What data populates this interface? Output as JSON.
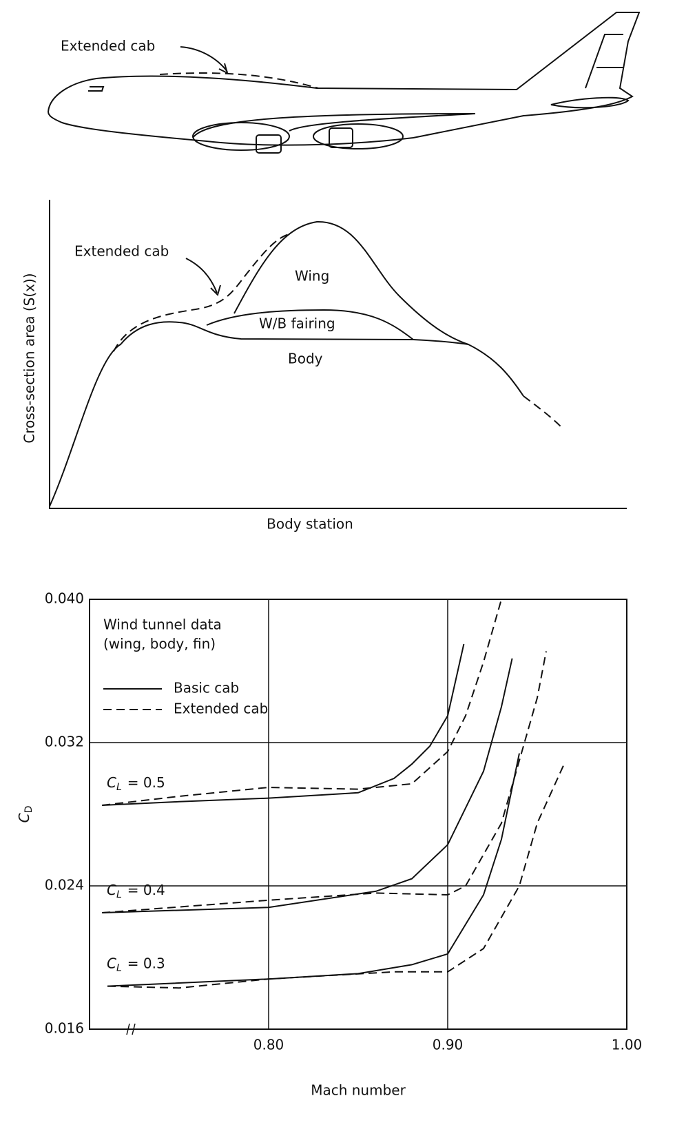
{
  "diagram": {
    "cab_label": "Extended cab",
    "area_labels": {
      "extended": "Extended cab",
      "wing": "Wing",
      "fairing": "W/B fairing",
      "body": "Body"
    },
    "ylabel": "Cross-section area (S(x))",
    "xlabel": "Body station"
  },
  "chart_data": {
    "type": "line",
    "xlabel": "Mach number",
    "ylabel": [
      "C",
      "D"
    ],
    "note": [
      "Wind tunnel data",
      "(wing, body, fin)"
    ],
    "legend": [
      {
        "name": "Basic cab",
        "style": "solid"
      },
      {
        "name": "Extended cab",
        "style": "dashed"
      }
    ],
    "xlim": [
      0.7,
      1.0
    ],
    "ylim": [
      0.016,
      0.04
    ],
    "xticks": [
      {
        "value": 0.8,
        "label": "0.80"
      },
      {
        "value": 0.9,
        "label": "0.90"
      },
      {
        "value": 1.0,
        "label": "1.00"
      }
    ],
    "yticks": [
      0.016,
      0.024,
      0.032,
      {
        "value": 0.04,
        "label": "0.040"
      }
    ],
    "grid": true,
    "color": "#111111",
    "groups": [
      {
        "label": [
          "C",
          "L",
          "= 0.5"
        ],
        "basic": {
          "x": [
            0.707,
            0.75,
            0.8,
            0.85,
            0.87,
            0.88,
            0.89,
            0.9,
            0.909
          ],
          "values": [
            0.0285,
            0.0287,
            0.0289,
            0.0292,
            0.03,
            0.0308,
            0.0318,
            0.0335,
            0.0375
          ]
        },
        "extended": {
          "x": [
            0.707,
            0.75,
            0.8,
            0.85,
            0.88,
            0.9,
            0.91,
            0.92,
            0.93
          ],
          "values": [
            0.0285,
            0.029,
            0.0295,
            0.0294,
            0.0297,
            0.0315,
            0.0335,
            0.0365,
            0.04
          ]
        }
      },
      {
        "label": [
          "C",
          "L",
          "= 0.4"
        ],
        "basic": {
          "x": [
            0.707,
            0.8,
            0.86,
            0.88,
            0.9,
            0.92,
            0.93,
            0.936
          ],
          "values": [
            0.0225,
            0.0228,
            0.0237,
            0.0244,
            0.0263,
            0.0304,
            0.034,
            0.0367
          ]
        },
        "extended": {
          "x": [
            0.707,
            0.8,
            0.86,
            0.9,
            0.91,
            0.93,
            0.95,
            0.955
          ],
          "values": [
            0.0225,
            0.0232,
            0.0236,
            0.0235,
            0.024,
            0.0275,
            0.0345,
            0.0371
          ]
        }
      },
      {
        "label": [
          "C",
          "L",
          "= 0.3"
        ],
        "basic": {
          "x": [
            0.71,
            0.8,
            0.85,
            0.88,
            0.9,
            0.92,
            0.93,
            0.94
          ],
          "values": [
            0.0184,
            0.0188,
            0.0191,
            0.0196,
            0.0202,
            0.0235,
            0.0266,
            0.0314
          ]
        },
        "extended": {
          "x": [
            0.71,
            0.75,
            0.8,
            0.87,
            0.9,
            0.92,
            0.94,
            0.95,
            0.965
          ],
          "values": [
            0.0184,
            0.0183,
            0.0188,
            0.0192,
            0.0192,
            0.0205,
            0.024,
            0.0275,
            0.0308
          ]
        }
      }
    ]
  }
}
